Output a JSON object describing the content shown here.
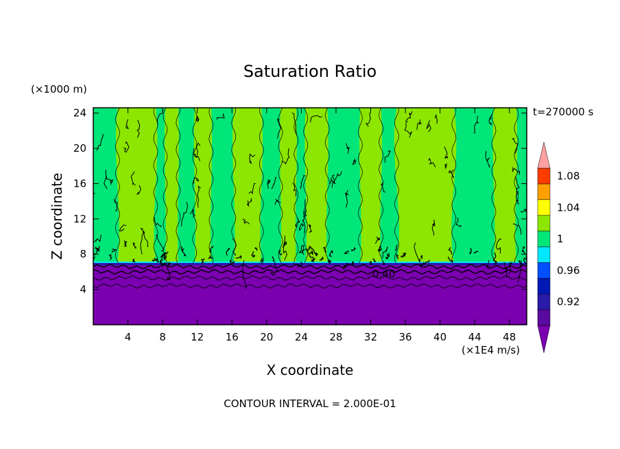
{
  "chart_data": {
    "type": "filled-contour",
    "title": "Saturation Ratio",
    "time_label": "t=270000 s",
    "xlabel": "X coordinate",
    "ylabel": "Z coordinate",
    "x_unit": "(×1E4 m/s)",
    "y_unit": "(×1000 m)",
    "x_ticks": [
      4,
      8,
      12,
      16,
      20,
      24,
      28,
      32,
      36,
      40,
      44,
      48
    ],
    "y_ticks": [
      4,
      8,
      12,
      16,
      20,
      24
    ],
    "xlim": [
      0,
      50
    ],
    "ylim": [
      0,
      24.6
    ],
    "contour_interval_label": "CONTOUR INTERVAL = 2.000E-01",
    "contour_line_label": "0.40",
    "colorbar": {
      "tick_labels": [
        "1.08",
        "1.04",
        "1",
        "0.96",
        "0.92"
      ],
      "tick_values": [
        1.08,
        1.04,
        1.0,
        0.96,
        0.92
      ],
      "levels": [
        0.9,
        0.92,
        0.94,
        0.96,
        0.98,
        1.0,
        1.02,
        1.04,
        1.06,
        1.08,
        1.1
      ],
      "colors": [
        "#5a0aa0",
        "#2a1aa8",
        "#0018b4",
        "#0050ff",
        "#00e6ff",
        "#00e678",
        "#8ce600",
        "#ffff00",
        "#ffa000",
        "#ff3c00",
        "#ff0000",
        "#ffa0a0"
      ],
      "under_color": "#7a00b0",
      "over_color": "#ffa0a0"
    },
    "regions": {
      "subsaturated_top_z": 7,
      "dominant_colors": [
        "#00e678",
        "#8ce600",
        "#7a00b0"
      ]
    }
  }
}
